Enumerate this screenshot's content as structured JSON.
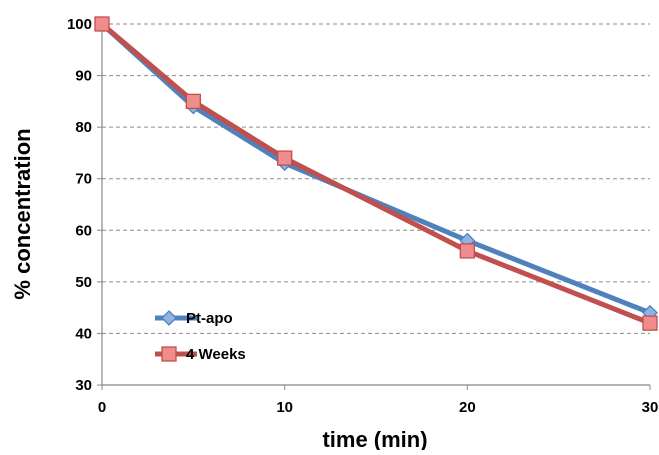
{
  "chart_data": {
    "type": "line",
    "title": "",
    "xlabel": "time (min)",
    "ylabel": "% concentration",
    "xlim": [
      0,
      30
    ],
    "ylim": [
      30,
      100
    ],
    "xticks": [
      "0",
      "10",
      "20",
      "30"
    ],
    "yticks": [
      "30",
      "40",
      "50",
      "60",
      "70",
      "80",
      "90",
      "100"
    ],
    "grid": "horizontal dashed",
    "legend_position": "bottom-left",
    "series": [
      {
        "name": "Pt-apo",
        "color": "#4f81bd",
        "marker": "diamond",
        "x": [
          0,
          5,
          10,
          20,
          30
        ],
        "y": [
          100,
          84,
          73,
          58,
          44
        ]
      },
      {
        "name": "4 Weeks",
        "color": "#c0504d",
        "marker": "square",
        "x": [
          0,
          5,
          10,
          20,
          30
        ],
        "y": [
          100,
          85,
          74,
          56,
          42
        ]
      }
    ]
  }
}
